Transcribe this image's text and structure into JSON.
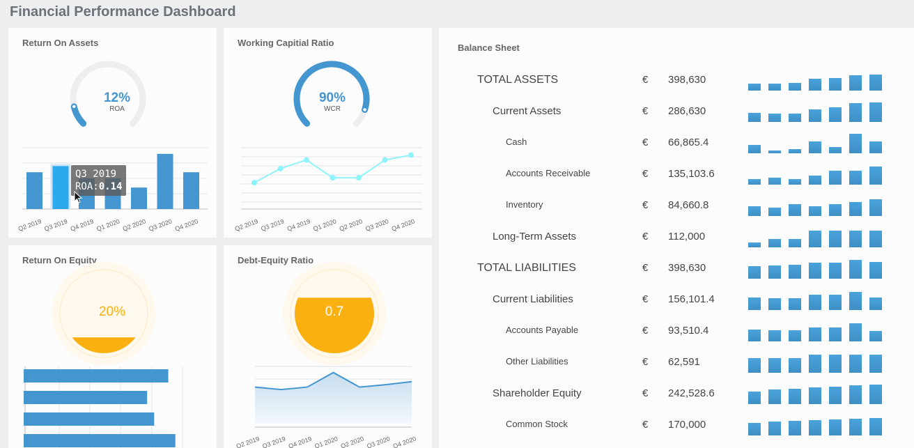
{
  "header": {
    "title": "Financial Performance Dashboard"
  },
  "colors": {
    "blue": "#4396cf",
    "cyan": "#8ef4fb",
    "orange": "#fab010",
    "highlight": "#2ca8ec"
  },
  "quarters": [
    "Q2 2019",
    "Q3 2019",
    "Q4 2019",
    "Q1 2020",
    "Q2 2020",
    "Q3 2020",
    "Q4 2020"
  ],
  "roa": {
    "title": "Return On Assets",
    "value": "12%",
    "label": "ROA",
    "gauge_fraction": 0.12,
    "chart_data": {
      "type": "bar",
      "values": [
        0.12,
        0.14,
        0.1,
        0.1,
        0.07,
        0.18,
        0.12
      ],
      "ylim": [
        0,
        0.2
      ],
      "grid": true
    },
    "tooltip": {
      "title": "Q3 2019",
      "label": "ROA:",
      "value": "0.14"
    }
  },
  "wcr": {
    "title": "Working Capitial Ratio",
    "value": "90%",
    "label": "WCR",
    "gauge_fraction": 0.9,
    "chart_data": {
      "type": "line",
      "values": [
        0.43,
        0.66,
        0.8,
        0.51,
        0.51,
        0.8,
        0.88
      ],
      "ylim": [
        0,
        1
      ],
      "grid": true
    }
  },
  "roe": {
    "title": "Return On Equity",
    "value": "20%",
    "fill_fraction": 0.2,
    "chart_data": {
      "type": "bar",
      "orientation": "horizontal",
      "values": [
        0.82,
        0.7,
        0.74,
        0.86
      ],
      "xlim": [
        0,
        1
      ],
      "grid": true
    }
  },
  "der": {
    "title": "Debt-Equity Ratio",
    "value": "0.7",
    "fill_fraction": 0.7,
    "chart_data": {
      "type": "area",
      "values": [
        0.66,
        0.62,
        0.66,
        0.9,
        0.66,
        0.7,
        0.75
      ],
      "ylim": [
        0,
        1
      ],
      "grid": true
    }
  },
  "balance": {
    "title": "Balance Sheet",
    "currency": "€",
    "rows": [
      {
        "label": "TOTAL ASSETS",
        "level": 0,
        "value": "398,630",
        "trend": [
          36,
          36,
          39,
          60,
          66,
          81,
          84
        ]
      },
      {
        "label": "Current Assets",
        "level": 1,
        "value": "286,630",
        "trend": [
          48,
          42,
          45,
          66,
          75,
          99,
          102
        ]
      },
      {
        "label": "Cash",
        "level": 2,
        "value": "66,865.4",
        "trend": [
          42,
          15,
          21,
          60,
          33,
          102,
          60
        ]
      },
      {
        "label": "Accounts Receivable",
        "level": 2,
        "value": "135,103.6",
        "trend": [
          30,
          36,
          30,
          48,
          72,
          72,
          93
        ]
      },
      {
        "label": "Inventory",
        "level": 2,
        "value": "84,660.8",
        "trend": [
          51,
          45,
          63,
          51,
          60,
          72,
          87
        ]
      },
      {
        "label": "Long-Term Assets",
        "level": 1,
        "value": "112,000",
        "trend": [
          24,
          42,
          42,
          87,
          87,
          87,
          87
        ]
      },
      {
        "label": "TOTAL LIABILITIES",
        "level": 0,
        "value": "398,630",
        "trend": [
          66,
          69,
          72,
          84,
          84,
          96,
          87
        ]
      },
      {
        "label": "Current Liabilities",
        "level": 1,
        "value": "156,101.4",
        "trend": [
          66,
          63,
          63,
          78,
          78,
          93,
          66
        ]
      },
      {
        "label": "Accounts Payable",
        "level": 2,
        "value": "93,510.4",
        "trend": [
          63,
          57,
          57,
          72,
          72,
          93,
          54
        ]
      },
      {
        "label": "Other Liabilities",
        "level": 2,
        "value": "62,591",
        "trend": [
          75,
          75,
          75,
          93,
          93,
          93,
          93
        ]
      },
      {
        "label": "Shareholder Equity",
        "level": 1,
        "value": "242,528.6",
        "trend": [
          66,
          75,
          81,
          87,
          90,
          96,
          102
        ]
      },
      {
        "label": "Common Stock",
        "level": 2,
        "value": "170,000",
        "trend": [
          66,
          72,
          75,
          81,
          84,
          87,
          90
        ]
      }
    ]
  }
}
